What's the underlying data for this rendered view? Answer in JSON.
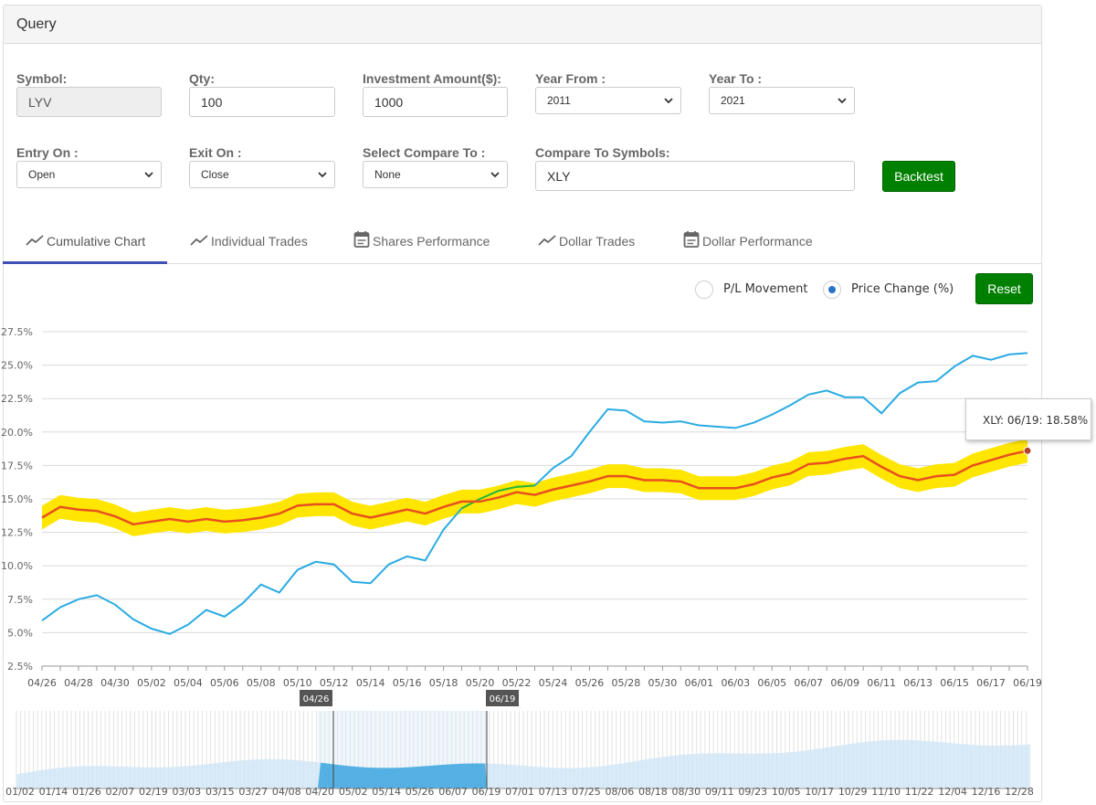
{
  "panel": {
    "title": "Query"
  },
  "form": {
    "symbol": {
      "label": "Symbol:",
      "value": "LYV"
    },
    "qty": {
      "label": "Qty:",
      "value": "100"
    },
    "investment": {
      "label": "Investment Amount($):",
      "value": "1000"
    },
    "year_from": {
      "label": "Year From :",
      "value": "2011"
    },
    "year_to": {
      "label": "Year To :",
      "value": "2021"
    },
    "entry_on": {
      "label": "Entry On :",
      "value": "Open"
    },
    "exit_on": {
      "label": "Exit On :",
      "value": "Close"
    },
    "compare_to": {
      "label": "Select Compare To :",
      "value": "None"
    },
    "compare_symbols": {
      "label": "Compare To Symbols:",
      "value": "XLY"
    },
    "backtest_label": "Backtest"
  },
  "tabs": [
    {
      "label": "Cumulative Chart",
      "icon": "trend-icon",
      "active": true
    },
    {
      "label": "Individual Trades",
      "icon": "trend-icon",
      "active": false
    },
    {
      "label": "Shares Performance",
      "icon": "calendar-icon",
      "active": false
    },
    {
      "label": "Dollar Trades",
      "icon": "trend-icon",
      "active": false
    },
    {
      "label": "Dollar Performance",
      "icon": "calendar-icon",
      "active": false
    }
  ],
  "controls": {
    "pl_movement_label": "P/L Movement",
    "price_change_label": "Price Change (%)",
    "selected": "Price Change (%)",
    "reset_label": "Reset"
  },
  "colors": {
    "accent_green": "#008000",
    "tab_underline": "#3f51b5",
    "series_lyv": "#29abe2",
    "series_xly": "#e8501e",
    "band": "#ffe600",
    "crossover": "#2db82d"
  },
  "tooltip": {
    "text": "XLY: 06/19: 18.58%"
  },
  "chart_data": {
    "type": "line",
    "ylim": [
      2.5,
      27.5
    ],
    "y_ticks": [
      "2.5%",
      "5.0%",
      "7.5%",
      "10.0%",
      "12.5%",
      "15.0%",
      "17.5%",
      "20.0%",
      "22.5%",
      "25.0%",
      "27.5%"
    ],
    "x_tick_labels": [
      "04/26",
      "04/28",
      "04/30",
      "05/02",
      "05/04",
      "05/06",
      "05/08",
      "05/10",
      "05/12",
      "05/14",
      "05/16",
      "05/18",
      "05/20",
      "05/22",
      "05/24",
      "05/26",
      "05/28",
      "05/30",
      "06/01",
      "06/03",
      "06/05",
      "06/07",
      "06/09",
      "06/11",
      "06/13",
      "06/15",
      "06/17",
      "06/19"
    ],
    "series": [
      {
        "values": [
          5.9,
          6.9,
          7.5,
          7.8,
          7.1,
          6.0,
          5.3,
          4.9,
          5.6,
          6.7,
          6.2,
          7.2,
          8.6,
          8.0,
          9.7,
          10.3,
          10.1,
          8.8,
          8.7,
          10.1,
          10.7,
          10.4,
          12.7,
          14.3,
          15.0,
          15.6,
          15.9,
          16.0,
          17.3,
          18.2,
          20.0,
          21.7,
          21.6,
          20.8,
          20.7,
          20.8,
          20.5,
          20.4,
          20.3,
          20.7,
          21.3,
          22.0,
          22.8,
          23.1,
          22.6,
          22.6,
          21.4,
          22.9,
          23.7,
          23.8,
          24.9,
          25.7,
          25.4,
          25.8,
          25.9
        ]
      },
      {
        "values": [
          13.6,
          14.4,
          14.2,
          14.1,
          13.7,
          13.1,
          13.3,
          13.5,
          13.3,
          13.5,
          13.3,
          13.4,
          13.6,
          13.9,
          14.5,
          14.6,
          14.6,
          13.9,
          13.6,
          13.9,
          14.2,
          13.9,
          14.4,
          14.8,
          14.8,
          15.1,
          15.5,
          15.3,
          15.7,
          16.0,
          16.3,
          16.7,
          16.7,
          16.4,
          16.4,
          16.3,
          15.8,
          15.8,
          15.8,
          16.1,
          16.6,
          16.9,
          17.6,
          17.7,
          18.0,
          18.2,
          17.4,
          16.7,
          16.4,
          16.7,
          16.8,
          17.5,
          17.9,
          18.3,
          18.6
        ]
      }
    ],
    "navigator": {
      "x_tick_labels": [
        "01/02",
        "01/14",
        "01/26",
        "02/07",
        "02/19",
        "03/03",
        "03/15",
        "03/27",
        "04/08",
        "04/20",
        "05/02",
        "05/14",
        "05/26",
        "06/07",
        "06/19",
        "07/01",
        "07/13",
        "07/25",
        "08/06",
        "08/18",
        "08/30",
        "09/11",
        "09/23",
        "10/05",
        "10/17",
        "10/29",
        "11/10",
        "11/22",
        "12/04",
        "12/16",
        "12/28"
      ],
      "range_start_label": "04/26",
      "range_end_label": "06/19"
    }
  }
}
